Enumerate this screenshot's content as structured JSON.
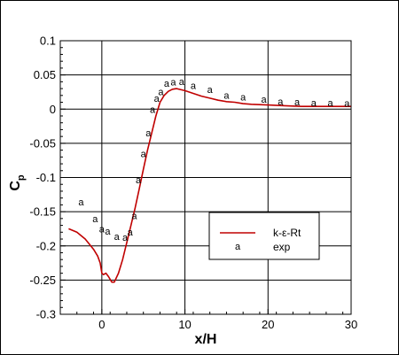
{
  "chart_data": {
    "type": "line",
    "xlabel": "x/H",
    "ylabel": "C",
    "ylabel_subscript": "p",
    "xlim": [
      -5,
      30
    ],
    "ylim": [
      -0.3,
      0.1
    ],
    "xticks": [
      0,
      10,
      20,
      30
    ],
    "yticks": [
      -0.3,
      -0.25,
      -0.2,
      -0.15,
      -0.1,
      -0.05,
      0,
      0.05,
      0.1
    ],
    "ytick_labels": [
      "-0.3",
      "-0.25",
      "-0.2",
      "-0.15",
      "-0.1",
      "-0.05",
      "0",
      "0.05",
      "0.1"
    ],
    "grid": true,
    "legend_position": "lower-right",
    "series": [
      {
        "name": "k-ε-Rt",
        "kind": "line",
        "color": "#c00000",
        "x": [
          -4,
          -3,
          -2,
          -1,
          -0.5,
          -0.2,
          0,
          0.2,
          0.5,
          0.8,
          1.2,
          1.5,
          2,
          2.5,
          3,
          3.5,
          4,
          4.5,
          5,
          5.5,
          6,
          6.5,
          7,
          7.5,
          8,
          8.5,
          9,
          10,
          11,
          12,
          13,
          14,
          15,
          16,
          17,
          18,
          20,
          22,
          24,
          26,
          28,
          30
        ],
        "y": [
          -0.175,
          -0.18,
          -0.19,
          -0.205,
          -0.215,
          -0.225,
          -0.24,
          -0.242,
          -0.24,
          -0.245,
          -0.253,
          -0.253,
          -0.24,
          -0.22,
          -0.195,
          -0.17,
          -0.145,
          -0.117,
          -0.088,
          -0.06,
          -0.035,
          -0.01,
          0.01,
          0.02,
          0.026,
          0.029,
          0.03,
          0.027,
          0.023,
          0.019,
          0.016,
          0.013,
          0.011,
          0.01,
          0.008,
          0.007,
          0.006,
          0.005,
          0.004,
          0.004,
          0.004,
          0.004
        ]
      },
      {
        "name": "exp",
        "kind": "marker",
        "marker_label": "a",
        "color": "#000000",
        "x": [
          -2.5,
          -0.8,
          0,
          0.7,
          1.8,
          2.8,
          3.4,
          3.9,
          4.4,
          5.0,
          5.6,
          6.1,
          6.6,
          7.1,
          7.8,
          8.6,
          9.6,
          11,
          13,
          15,
          17,
          19.5,
          21.5,
          23.5,
          25.5,
          27.5,
          29.5
        ],
        "y": [
          -0.136,
          -0.161,
          -0.176,
          -0.179,
          -0.187,
          -0.188,
          -0.18,
          -0.156,
          -0.104,
          -0.066,
          -0.035,
          -0.001,
          0.015,
          0.025,
          0.037,
          0.039,
          0.04,
          0.034,
          0.028,
          0.02,
          0.017,
          0.014,
          0.011,
          0.01,
          0.009,
          0.009,
          0.008
        ]
      }
    ]
  }
}
